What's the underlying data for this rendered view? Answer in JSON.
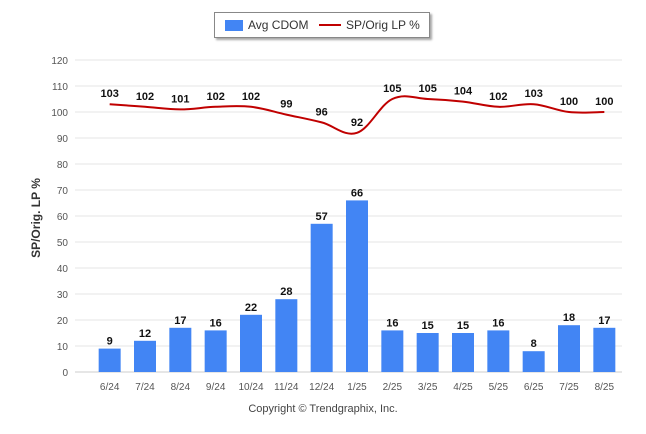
{
  "legend": {
    "bar_label": "Avg CDOM",
    "line_label": "SP/Orig LP %"
  },
  "copyright": "Copyright © Trendgraphix, Inc.",
  "colors": {
    "bar": "#4285f4",
    "line": "#c00000",
    "grid": "#e6e6e6",
    "axis_text": "#555555",
    "label_text": "#111111"
  },
  "chart_data": {
    "type": "bar",
    "title": "",
    "xlabel": "",
    "ylabel": "SP/Orig. LP %",
    "ylim": [
      0,
      120
    ],
    "yticks": [
      0,
      10,
      20,
      30,
      40,
      50,
      60,
      70,
      80,
      90,
      100,
      110,
      120
    ],
    "grid": true,
    "legend_position": "top-center",
    "categories": [
      "6/24",
      "7/24",
      "8/24",
      "9/24",
      "10/24",
      "11/24",
      "12/24",
      "1/25",
      "2/25",
      "3/25",
      "4/25",
      "5/25",
      "6/25",
      "7/25",
      "8/25"
    ],
    "series": [
      {
        "name": "Avg CDOM",
        "type": "bar",
        "values": [
          9,
          12,
          17,
          16,
          22,
          28,
          57,
          66,
          16,
          15,
          15,
          16,
          8,
          18,
          17
        ]
      },
      {
        "name": "SP/Orig LP %",
        "type": "line",
        "values": [
          103,
          102,
          101,
          102,
          102,
          99,
          96,
          92,
          105,
          105,
          104,
          102,
          103,
          100,
          100
        ]
      }
    ]
  }
}
